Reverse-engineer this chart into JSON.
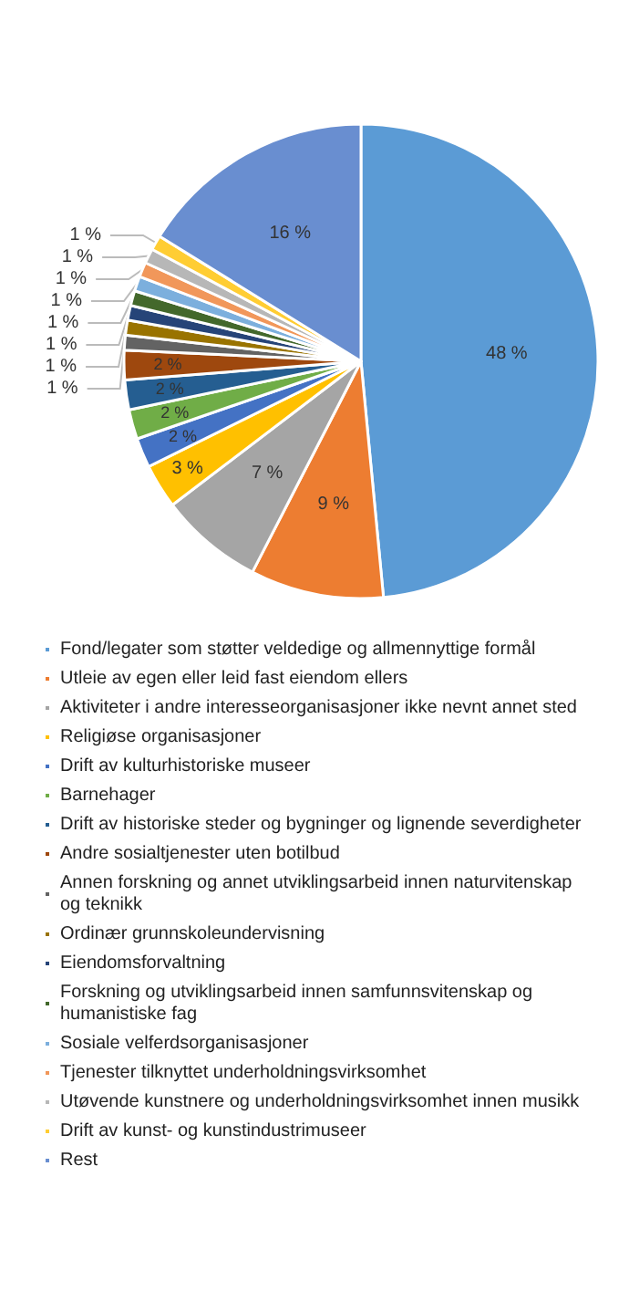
{
  "chart_data": {
    "type": "pie",
    "categories": [
      "Fond/legater som støtter veldedige og allmennyttige formål",
      "Utleie av egen eller leid fast eiendom ellers",
      "Aktiviteter i andre interesseorganisasjoner ikke nevnt annet sted",
      "Religiøse organisasjoner",
      "Drift av kulturhistoriske museer",
      "Barnehager",
      "Drift av historiske steder og bygninger og lignende severdigheter",
      "Andre sosialtjenester uten botilbud",
      "Annen forskning og annet utviklingsarbeid innen naturvitenskap og teknikk",
      "Ordinær grunnskoleundervisning",
      "Eiendomsforvaltning",
      "Forskning og utviklingsarbeid innen samfunnsvitenskap og humanistiske fag",
      "Sosiale velferdsorganisasjoner",
      "Tjenester tilknyttet underholdningsvirksomhet",
      "Utøvende kunstnere og underholdningsvirksomhet innen musikk",
      "Drift av kunst- og kunstindustrimuseer",
      "Rest"
    ],
    "values": [
      48,
      9,
      7,
      3,
      2,
      2,
      2,
      2,
      1,
      1,
      1,
      1,
      1,
      1,
      1,
      1,
      16
    ],
    "value_labels": [
      "48 %",
      "9 %",
      "7 %",
      "3 %",
      "2 %",
      "2 %",
      "2 %",
      "2 %",
      "1 %",
      "1 %",
      "1 %",
      "1 %",
      "1 %",
      "1 %",
      "1 %",
      "1 %",
      "16 %"
    ],
    "colors": [
      "#5b9bd5",
      "#ed7d31",
      "#a5a5a5",
      "#ffc000",
      "#4472c4",
      "#70ad47",
      "#255e91",
      "#9e480e",
      "#636363",
      "#997300",
      "#264478",
      "#43682b",
      "#7cafdd",
      "#f1975a",
      "#b7b7b7",
      "#ffcd33",
      "#698ed0"
    ],
    "legend": "bottom"
  }
}
